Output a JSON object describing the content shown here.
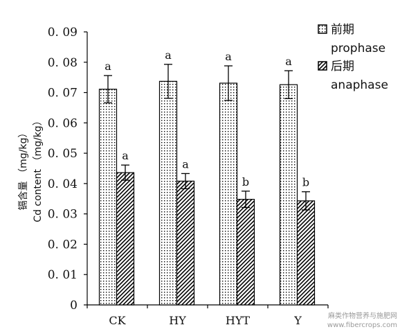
{
  "chart_data": {
    "type": "bar",
    "categories": [
      "CK",
      "HY",
      "HYT",
      "Y"
    ],
    "ylabel_cn": "镉含量 （mg/kg）",
    "ylabel_en": "Cd content （mg/kg）",
    "ylim": [
      0,
      0.09
    ],
    "yticks": [
      "0",
      "0. 01",
      "0. 02",
      "0. 03",
      "0. 04",
      "0. 05",
      "0. 06",
      "0. 07",
      "0. 08",
      "0. 09"
    ],
    "series": [
      {
        "name": "前期",
        "name_en": "prophase",
        "values": [
          0.0711,
          0.0737,
          0.0731,
          0.0726
        ],
        "errors": [
          0.0045,
          0.0056,
          0.0057,
          0.0046
        ],
        "significance": [
          "a",
          "a",
          "a",
          "a"
        ],
        "pattern": "dots"
      },
      {
        "name": "后期",
        "name_en": "anaphase",
        "values": [
          0.0436,
          0.0408,
          0.0348,
          0.0343
        ],
        "errors": [
          0.0025,
          0.0025,
          0.0027,
          0.003
        ],
        "significance": [
          "a",
          "a",
          "b",
          "b"
        ],
        "pattern": "hatch"
      }
    ],
    "grid": false,
    "legend": "top-right"
  },
  "watermark": {
    "line1": "麻类作物营养与施肥网",
    "line2": "www.fibercrops.com"
  }
}
